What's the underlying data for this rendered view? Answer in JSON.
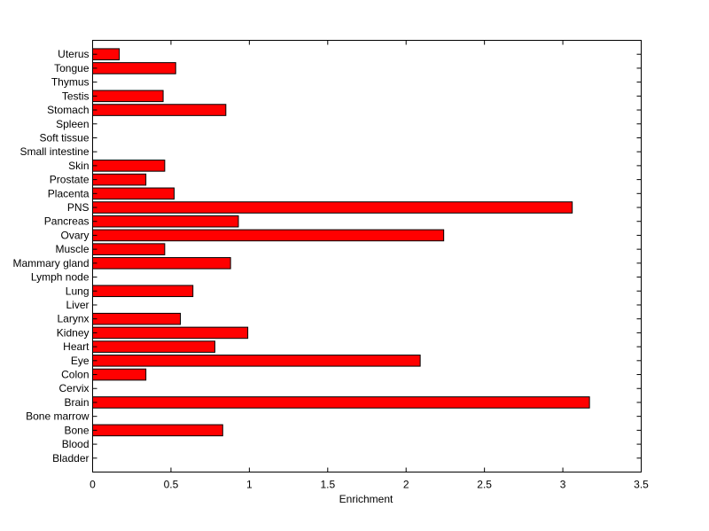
{
  "chart_data": {
    "type": "bar",
    "orientation": "horizontal",
    "title": "",
    "xlabel": "Enrichment",
    "ylabel": "",
    "xlim": [
      0,
      3.5
    ],
    "xticks": [
      "0",
      "0.5",
      "1",
      "1.5",
      "2",
      "2.5",
      "3",
      "3.5"
    ],
    "grid": false,
    "bar_color": "#ff0000",
    "categories": [
      "Bladder",
      "Blood",
      "Bone",
      "Bone marrow",
      "Brain",
      "Cervix",
      "Colon",
      "Eye",
      "Heart",
      "Kidney",
      "Larynx",
      "Liver",
      "Lung",
      "Lymph node",
      "Mammary gland",
      "Muscle",
      "Ovary",
      "Pancreas",
      "PNS",
      "Placenta",
      "Prostate",
      "Skin",
      "Small intestine",
      "Soft tissue",
      "Spleen",
      "Stomach",
      "Testis",
      "Thymus",
      "Tongue",
      "Uterus"
    ],
    "values": [
      0,
      0,
      0.83,
      0,
      3.17,
      0,
      0.34,
      2.09,
      0.78,
      0.99,
      0.56,
      0,
      0.64,
      0,
      0.88,
      0.46,
      2.24,
      0.93,
      3.06,
      0.52,
      0.34,
      0.46,
      0,
      0,
      0,
      0.85,
      0.45,
      0,
      0.53,
      0.17
    ]
  }
}
